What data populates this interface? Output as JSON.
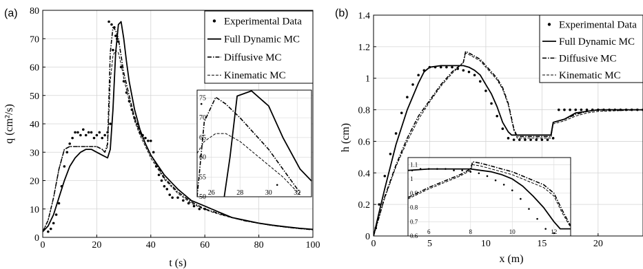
{
  "chart_data": [
    {
      "type": "line",
      "panel_label": "(a)",
      "xlabel": "t (s)",
      "ylabel": "q (cm²/s)",
      "xlim": [
        0,
        100
      ],
      "ylim": [
        0,
        80
      ],
      "x_ticks": [
        0,
        20,
        40,
        60,
        80,
        100
      ],
      "y_ticks": [
        0,
        10,
        20,
        30,
        40,
        50,
        60,
        70,
        80
      ],
      "grid": true,
      "legend_position": "top-right",
      "series": [
        {
          "name": "Experimental Data",
          "style": "dots",
          "x": [
            2,
            3,
            4,
            5,
            6,
            7,
            8,
            9,
            10,
            11,
            12,
            13,
            14,
            15,
            16,
            17,
            18,
            19,
            20,
            21,
            22,
            23,
            24,
            24.5,
            25,
            25.5,
            26,
            26.5,
            27,
            27.5,
            28,
            29,
            30,
            31,
            32,
            33,
            34,
            35,
            36,
            37,
            38,
            39,
            40,
            41,
            42,
            43,
            44,
            45,
            46,
            47,
            48,
            50,
            52,
            54,
            56,
            58,
            60
          ],
          "y": [
            2,
            3,
            5,
            8,
            12,
            18,
            25,
            30,
            33,
            35,
            37,
            37,
            36,
            38,
            36,
            37,
            37,
            35,
            36,
            37,
            35,
            36,
            37,
            76,
            40,
            75,
            66,
            74,
            71,
            70,
            69,
            60,
            55,
            51,
            48,
            45,
            42,
            40,
            37,
            36,
            35,
            34,
            34,
            30,
            25,
            22,
            20,
            18,
            17,
            15,
            14,
            14,
            13,
            12,
            11,
            10,
            10
          ]
        },
        {
          "name": "Full Dynamic MC",
          "style": "solid",
          "x": [
            0,
            2,
            4,
            6,
            8,
            10,
            12,
            14,
            16,
            18,
            20,
            22,
            24,
            25,
            26,
            27,
            28,
            29,
            30,
            31,
            32,
            34,
            36,
            38,
            40,
            45,
            50,
            55,
            60,
            65,
            70,
            75,
            80,
            85,
            90,
            95,
            100
          ],
          "y": [
            2,
            4,
            8,
            14,
            20,
            25,
            28,
            30,
            31,
            31,
            30,
            29,
            28,
            31,
            45,
            65,
            75,
            76,
            70,
            62,
            55,
            45,
            38,
            33,
            29,
            22,
            17,
            13,
            11,
            9,
            7,
            6,
            5,
            4.3,
            3.7,
            3.2,
            2.8
          ]
        },
        {
          "name": "Diffusive MC",
          "style": "dashdot",
          "x": [
            0,
            2,
            4,
            6,
            8,
            10,
            12,
            14,
            16,
            18,
            20,
            22,
            23,
            24,
            25,
            26,
            27,
            28,
            29,
            30,
            32,
            34,
            36,
            38,
            40,
            45,
            50,
            55,
            60,
            65,
            70,
            75,
            80,
            85,
            90,
            95,
            100
          ],
          "y": [
            2,
            6,
            14,
            24,
            31,
            32,
            32,
            32,
            32,
            32,
            32,
            31,
            30,
            33,
            65,
            74,
            73,
            70,
            64,
            58,
            50,
            42,
            37,
            33,
            29,
            21,
            16,
            12.5,
            10,
            8.5,
            7,
            5.8,
            5,
            4.2,
            3.6,
            3.1,
            2.7
          ]
        },
        {
          "name": "Kinematic MC",
          "style": "dashed",
          "x": [
            0,
            2,
            4,
            6,
            8,
            10,
            12,
            14,
            16,
            18,
            20,
            22,
            23,
            24,
            25,
            26,
            27,
            28,
            29,
            30,
            32,
            34,
            36,
            38,
            40,
            45,
            50,
            55,
            60,
            65,
            70,
            75,
            80,
            85,
            90,
            95,
            100
          ],
          "y": [
            2,
            6,
            14,
            24,
            31,
            32,
            32,
            32,
            32,
            32,
            32,
            31,
            30,
            32,
            55,
            64,
            66,
            65,
            61,
            56,
            48,
            41,
            36,
            32,
            28,
            20.5,
            15.5,
            12,
            9.8,
            8.2,
            6.9,
            5.8,
            4.9,
            4.2,
            3.6,
            3.1,
            2.7
          ]
        }
      ],
      "inset": {
        "xlim": [
          25,
          33
        ],
        "ylim": [
          50,
          77
        ],
        "x_ticks": [
          26,
          28,
          30,
          32
        ],
        "y_ticks": [
          50,
          55,
          60,
          65,
          70,
          75
        ],
        "series": [
          {
            "name": "Experimental Data",
            "style": "dots",
            "x": [
              25.3,
              30.6
            ],
            "y": [
              73.5,
              53
            ]
          },
          {
            "name": "Full Dynamic MC",
            "style": "solid",
            "x": [
              26.9,
              27.3,
              27.8,
              28.8,
              30.0,
              31.0,
              32.2,
              33
            ],
            "y": [
              50,
              60,
              75.5,
              76.8,
              73,
              65,
              57,
              54
            ]
          },
          {
            "name": "Diffusive MC",
            "style": "dashdot",
            "x": [
              25,
              25.5,
              26.3,
              27.0,
              28,
              29,
              30,
              31,
              32.2
            ],
            "y": [
              50,
              69,
              75.2,
              73.5,
              70,
              66,
              62,
              57,
              51
            ]
          },
          {
            "name": "Kinematic MC",
            "style": "dashed",
            "x": [
              25,
              25.5,
              26.3,
              27.0,
              28,
              29,
              30,
              31,
              32.2
            ],
            "y": [
              61,
              64,
              66,
              66,
              64,
              61,
              58,
              55,
              50.5
            ]
          }
        ]
      }
    },
    {
      "type": "line",
      "panel_label": "(b)",
      "xlabel": "x (m)",
      "ylabel": "h (cm)",
      "xlim": [
        0,
        24
      ],
      "ylim": [
        0,
        1.4
      ],
      "x_ticks": [
        0,
        5,
        10,
        15,
        20
      ],
      "y_ticks": [
        0,
        0.2,
        0.4,
        0.6,
        0.8,
        1,
        1.2,
        1.4
      ],
      "grid": true,
      "legend_position": "top-right",
      "series": [
        {
          "name": "Experimental Data",
          "style": "dots",
          "x": [
            0.2,
            0.5,
            1,
            1.5,
            2,
            2.5,
            3,
            3.5,
            4,
            4.5,
            5,
            5.5,
            6,
            6.5,
            7,
            7.5,
            8,
            8.5,
            9,
            9.5,
            10,
            10.5,
            11,
            11.5,
            12,
            12.5,
            13,
            13.5,
            14,
            14.5,
            15,
            15.5,
            16,
            16.5,
            17,
            17.5,
            18,
            18.5,
            19,
            19.5,
            20,
            20.5,
            21,
            21.5,
            22,
            22.5,
            23,
            23.5,
            24
          ],
          "y": [
            0.05,
            0.2,
            0.38,
            0.52,
            0.65,
            0.78,
            0.88,
            0.96,
            1.02,
            1.05,
            1.07,
            1.07,
            1.07,
            1.07,
            1.07,
            1.06,
            1.05,
            1.04,
            1.02,
            0.98,
            0.92,
            0.84,
            0.76,
            0.68,
            0.62,
            0.61,
            0.61,
            0.61,
            0.61,
            0.61,
            0.61,
            0.61,
            0.62,
            0.8,
            0.8,
            0.8,
            0.8,
            0.8,
            0.8,
            0.8,
            0.8,
            0.8,
            0.8,
            0.8,
            0.8,
            0.8,
            0.8,
            0.8,
            0.8
          ]
        },
        {
          "name": "Full Dynamic MC",
          "style": "solid",
          "x": [
            0,
            0.5,
            1,
            2,
            3,
            4,
            4.5,
            5,
            6,
            7,
            8,
            8.5,
            9,
            9.5,
            10,
            10.5,
            11,
            11.5,
            12,
            12.3,
            13,
            14,
            15,
            15.8,
            16,
            17,
            18,
            19,
            20,
            24
          ],
          "y": [
            0,
            0.15,
            0.3,
            0.58,
            0.8,
            0.97,
            1.04,
            1.07,
            1.08,
            1.08,
            1.08,
            1.07,
            1.05,
            1.02,
            0.96,
            0.9,
            0.82,
            0.72,
            0.66,
            0.64,
            0.64,
            0.64,
            0.64,
            0.64,
            0.72,
            0.74,
            0.78,
            0.79,
            0.8,
            0.8
          ]
        },
        {
          "name": "Diffusive MC",
          "style": "dashdot",
          "x": [
            0,
            0.5,
            1,
            2,
            3,
            4,
            5,
            6,
            7,
            8,
            8.2,
            8.5,
            9,
            9.5,
            10,
            10.5,
            11,
            11.5,
            12,
            12.5,
            12.8,
            13,
            14,
            15,
            15.8,
            16,
            17,
            18,
            19,
            20,
            24
          ],
          "y": [
            0,
            0.12,
            0.25,
            0.45,
            0.62,
            0.76,
            0.86,
            0.96,
            1.04,
            1.1,
            1.17,
            1.16,
            1.14,
            1.12,
            1.08,
            1.04,
            1,
            0.94,
            0.84,
            0.68,
            0.63,
            0.63,
            0.63,
            0.63,
            0.63,
            0.72,
            0.74,
            0.77,
            0.79,
            0.8,
            0.8
          ]
        },
        {
          "name": "Kinematic MC",
          "style": "dashed",
          "x": [
            0,
            0.5,
            1,
            2,
            3,
            4,
            5,
            6,
            7,
            8,
            8.2,
            8.5,
            9,
            9.5,
            10,
            10.5,
            11,
            11.5,
            12,
            12.5,
            12.8,
            13,
            14,
            15,
            15.8,
            16,
            17,
            18,
            19,
            20,
            24
          ],
          "y": [
            0,
            0.12,
            0.24,
            0.44,
            0.6,
            0.74,
            0.85,
            0.95,
            1.03,
            1.1,
            1.16,
            1.15,
            1.13,
            1.11,
            1.07,
            1.03,
            0.99,
            0.93,
            0.83,
            0.67,
            0.62,
            0.62,
            0.62,
            0.62,
            0.62,
            0.71,
            0.73,
            0.76,
            0.78,
            0.79,
            0.8
          ]
        }
      ],
      "inset": {
        "xlim": [
          5,
          12.8
        ],
        "ylim": [
          0.6,
          1.15
        ],
        "x_ticks": [
          6,
          8,
          10,
          12
        ],
        "y_ticks": [
          0.6,
          0.7,
          0.8,
          0.9,
          1,
          1.1
        ],
        "series": [
          {
            "name": "Experimental Data",
            "style": "dots",
            "x": [
              5.2,
              5.6,
              6,
              6.4,
              6.8,
              7.2,
              7.6,
              8,
              8.4,
              8.8,
              9.2,
              9.6,
              10,
              10.4,
              10.8,
              11.2,
              11.6,
              12
            ],
            "y": [
              1.06,
              1.07,
              1.07,
              1.07,
              1.07,
              1.06,
              1.06,
              1.05,
              1.04,
              1.02,
              0.99,
              0.96,
              0.92,
              0.86,
              0.79,
              0.72,
              0.65,
              0.62
            ]
          },
          {
            "name": "Full Dynamic MC",
            "style": "solid",
            "x": [
              5,
              6,
              7,
              7.5,
              8,
              8.5,
              9,
              9.5,
              10,
              10.5,
              11,
              11.5,
              12,
              12.3,
              12.8
            ],
            "y": [
              1.06,
              1.07,
              1.07,
              1.07,
              1.07,
              1.06,
              1.05,
              1.03,
              1.0,
              0.95,
              0.88,
              0.8,
              0.7,
              0.65,
              0.65
            ]
          },
          {
            "name": "Diffusive MC",
            "style": "dashdot",
            "x": [
              5,
              6,
              7,
              7.5,
              8,
              8.1,
              8.5,
              9,
              9.5,
              10,
              10.5,
              11,
              11.5,
              12,
              12.4,
              12.8
            ],
            "y": [
              0.87,
              0.94,
              1.0,
              1.03,
              1.07,
              1.12,
              1.11,
              1.09,
              1.07,
              1.05,
              1.02,
              0.99,
              0.96,
              0.9,
              0.78,
              0.67
            ]
          },
          {
            "name": "Kinematic MC",
            "style": "dashed",
            "x": [
              5,
              6,
              7,
              7.5,
              8,
              8.1,
              8.5,
              9,
              9.5,
              10,
              10.5,
              11,
              11.5,
              12,
              12.4,
              12.8
            ],
            "y": [
              0.86,
              0.93,
              0.99,
              1.02,
              1.06,
              1.1,
              1.09,
              1.07,
              1.05,
              1.03,
              1.0,
              0.97,
              0.94,
              0.88,
              0.76,
              0.66
            ]
          }
        ]
      }
    }
  ]
}
